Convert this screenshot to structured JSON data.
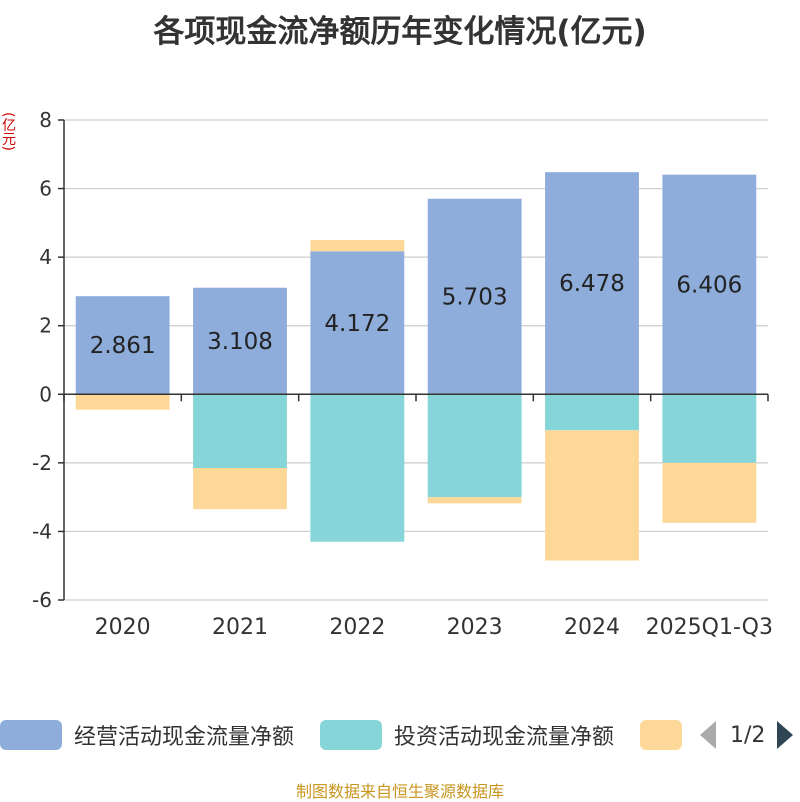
{
  "chart_data": {
    "type": "bar",
    "stacked": true,
    "title": "各项现金流净额历年变化情况(亿元)",
    "ylabel": "(亿元)",
    "ylim": [
      -6,
      8
    ],
    "yticks": [
      8,
      6,
      4,
      2,
      0,
      -2,
      -4,
      -6
    ],
    "categories": [
      "2020",
      "2021",
      "2022",
      "2023",
      "2024",
      "2025Q1-Q3"
    ],
    "series": [
      {
        "name": "经营活动现金流量净额",
        "color": "#8eaddb",
        "values": [
          2.861,
          3.108,
          4.172,
          5.703,
          6.478,
          6.406
        ],
        "labels": [
          "2.861",
          "3.108",
          "4.172",
          "5.703",
          "6.478",
          "6.406"
        ]
      },
      {
        "name": "投资活动现金流量净额",
        "color": "#86d5d8",
        "values": [
          0,
          -2.15,
          -4.3,
          -3.0,
          -1.05,
          -2.0
        ]
      },
      {
        "name": "",
        "color": "#fdd898",
        "values": [
          -0.45,
          -1.2,
          0.33,
          -0.18,
          -3.8,
          -1.75
        ]
      }
    ],
    "grid": true,
    "legend": "bottom"
  },
  "legend_page": "1/2",
  "source": "制图数据来自恒生聚源数据库"
}
